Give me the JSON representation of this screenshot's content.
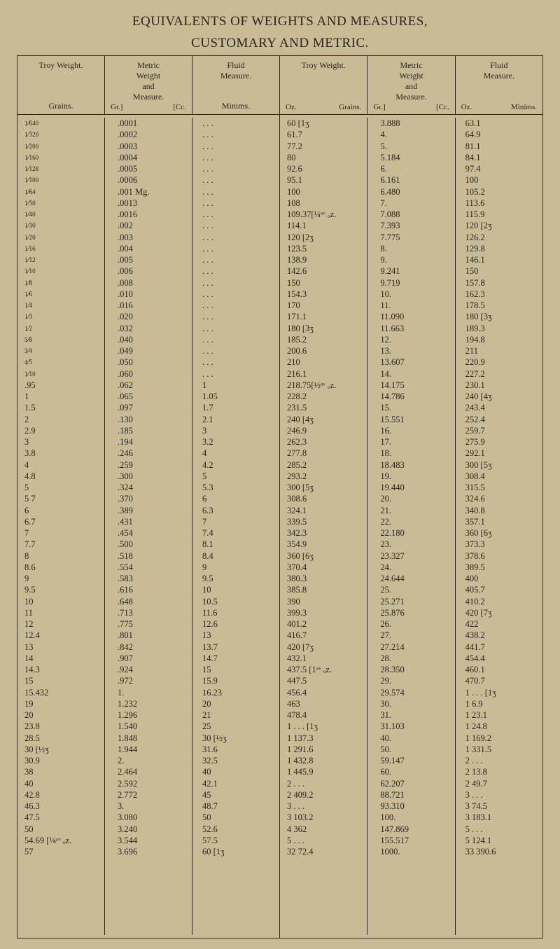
{
  "title_line1": "EQUIVALENTS OF WEIGHTS AND MEASURES,",
  "title_line2": "CUSTOMARY AND METRIC.",
  "colors": {
    "paper": "#c9bb96",
    "ink": "#2a2620"
  },
  "headers": {
    "troy": "Troy Weight.",
    "troy_sub": "Grains.",
    "metric": "Metric\nWeight\nand\nMeasure.",
    "metric_sub_l": "Gr.]",
    "metric_sub_r": "[Cc.",
    "fluid": "Fluid\nMeasure.",
    "fluid_sub": "Minims.",
    "troy2_sub_l": "Oz.",
    "troy2_sub_r": "Grains.",
    "fluid2_sub_l": "Oz.",
    "fluid2_sub_r": "Minims."
  },
  "left": {
    "troy": [
      "1⁄640",
      "1⁄320",
      "1⁄200",
      "1⁄160",
      "1⁄128",
      "1⁄100",
      "1⁄64",
      "1⁄50",
      "1⁄40",
      "1⁄30",
      "1⁄20",
      "1⁄16",
      "1⁄12",
      "1⁄10",
      "1⁄8",
      "1⁄6",
      "1⁄4",
      "1⁄3",
      "1⁄2",
      "5⁄8",
      "3⁄4",
      "4⁄5",
      "1⁄10",
      ".95",
      "1",
      "1.5",
      "2",
      "2.9",
      "3",
      "3.8",
      "4",
      "4.8",
      "5",
      "5 7",
      "6",
      "6.7",
      "7",
      "7.7",
      "8",
      "8.6",
      "9",
      "9.5",
      "10",
      "11",
      "12",
      "12.4",
      "13",
      "14",
      "14.3",
      "15",
      "15.432",
      "19",
      "20",
      "23.8",
      "28.5",
      "30  [½ʒ",
      "30.9",
      "38",
      "40",
      "42.8",
      "46.3",
      "47.5",
      "50",
      "54.69 [⅛ᵃᵛ ₒz.",
      "57"
    ],
    "metric": [
      ".0001",
      ".0002",
      ".0003",
      ".0004",
      ".0005",
      ".0006",
      ".001 Mg.",
      ".0013",
      ".0016",
      ".002",
      ".003",
      ".004",
      ".005",
      ".006",
      ".008",
      ".010",
      ".016",
      ".020",
      ".032",
      ".040",
      ".049",
      ".050",
      ".060",
      ".062",
      ".065",
      ".097",
      ".130",
      ".185",
      ".194",
      ".246",
      ".259",
      ".300",
      ".324",
      ".370",
      ".389",
      ".431",
      ".454",
      ".500",
      ".518",
      ".554",
      ".583",
      ".616",
      ".648",
      ".713",
      ".775",
      ".801",
      ".842",
      ".907",
      ".924",
      ".972",
      "1.",
      "1.232",
      "1.296",
      "1.540",
      "1.848",
      "1.944",
      "2.",
      "2.464",
      "2.592",
      "2.772",
      "3.",
      "3.080",
      "3.240",
      "3.544",
      "3.696"
    ],
    "fluid": [
      ". . .",
      ". . .",
      ". . .",
      ". . .",
      ". . .",
      ". . .",
      ". . .",
      ". . .",
      ". . .",
      ". . .",
      ". . .",
      ". . .",
      ". . .",
      ". . .",
      ". . .",
      ". . .",
      ". . .",
      ". . .",
      ". . .",
      ". . .",
      ". . .",
      ". . .",
      ". . .",
      "1",
      "1.05",
      "1.7",
      "2.1",
      "3",
      "3.2",
      "4",
      "4.2",
      "5",
      "5.3",
      "6",
      "6.3",
      "7",
      "7.4",
      "8.1",
      "8.4",
      "9",
      "9.5",
      "10",
      "10.5",
      "11.6",
      "12.6",
      "13",
      "13.7",
      "14.7",
      "15",
      "15.9",
      "16.23",
      "20",
      "21",
      "25",
      "30  [½ʒ",
      "31.6",
      "32.5",
      "40",
      "42.1",
      "45",
      "48.7",
      "50",
      "52.6",
      "57.5",
      "60  [1ʒ"
    ]
  },
  "right": {
    "troy": [
      "60  [1ʒ",
      "61.7",
      "77.2",
      "80",
      "92.6",
      "95.1",
      "100",
      "108",
      "109.37[¼ᵃᵛ ₒz.",
      "114.1",
      "120  [2ʒ",
      "123.5",
      "138.9",
      "142.6",
      "150",
      "154.3",
      "170",
      "171.1",
      "180  [3ʒ",
      "185.2",
      "200.6",
      "210",
      "216.1",
      "218.75[½ᵃᵛ ₒz.",
      "228.2",
      "231.5",
      "240  [4ʒ",
      "246.9",
      "262.3",
      "277.8",
      "285.2",
      "293.2",
      "300  [5ʒ",
      "308.6",
      "324.1",
      "339.5",
      "342.3",
      "354.9",
      "360  [6ʒ",
      "370.4",
      "380.3",
      "385.8",
      "390",
      "399.3",
      "401.2",
      "416.7",
      "420  [7ʒ",
      "432.1",
      "437.5 [1ᵃᵛ ₒz.",
      "447.5",
      "456.4",
      "463",
      "478.4",
      "1  . . . [1ʒ",
      "1  137.3",
      "1  291.6",
      "1  432.8",
      "1  445.9",
      "2  . . .",
      "2  409.2",
      "3  . . .",
      "3  103.2",
      "4  362",
      "5  . . .",
      "32  72.4"
    ],
    "metric": [
      "3.888",
      "4.",
      "5.",
      "5.184",
      "6.",
      "6.161",
      "6.480",
      "7.",
      "7.088",
      "7.393",
      "7.775",
      "8.",
      "9.",
      "9.241",
      "9.719",
      "10.",
      "11.",
      "11.090",
      "11.663",
      "12.",
      "13.",
      "13.607",
      "14.",
      "14.175",
      "14.786",
      "15.",
      "15.551",
      "16.",
      "17.",
      "18.",
      "18.483",
      "19.",
      "19.440",
      "20.",
      "21.",
      "22.",
      "22.180",
      "23.",
      "23.327",
      "24.",
      "24.644",
      "25.",
      "25.271",
      "25.876",
      "26.",
      "27.",
      "27.214",
      "28.",
      "28.350",
      "29.",
      "29.574",
      "30.",
      "31.",
      "31.103",
      "40.",
      "50.",
      "59.147",
      "60.",
      "62.207",
      "88.721",
      "93.310",
      "100.",
      "147.869",
      "155.517",
      "1000."
    ],
    "fluid": [
      "63.1",
      "64.9",
      "81.1",
      "84.1",
      "97.4",
      "100",
      "105.2",
      "113.6",
      "115.9",
      "120  [2ʒ",
      "126.2",
      "129.8",
      "146.1",
      "150",
      "157.8",
      "162.3",
      "178.5",
      "180  [3ʒ",
      "189.3",
      "194.8",
      "211",
      "220.9",
      "227.2",
      "230.1",
      "240  [4ʒ",
      "243.4",
      "252.4",
      "259.7",
      "275.9",
      "292.1",
      "300  [5ʒ",
      "308.4",
      "315.5",
      "324.6",
      "340.8",
      "357.1",
      "360  [6ʒ",
      "373.3",
      "378.6",
      "389.5",
      "400",
      "405.7",
      "410.2",
      "420  [7ʒ",
      "422",
      "438.2",
      "441.7",
      "454.4",
      "460.1",
      "470.7",
      "1  . . . [1ʒ",
      "1   6.9",
      "1   23.1",
      "1   24.8",
      "1  169.2",
      "1  331.5",
      "2  . . .",
      "2   13.8",
      "2   49.7",
      "3  . . .",
      "3   74.5",
      "3  183.1",
      "5  . . .",
      "5  124.1",
      "33  390.6"
    ]
  }
}
